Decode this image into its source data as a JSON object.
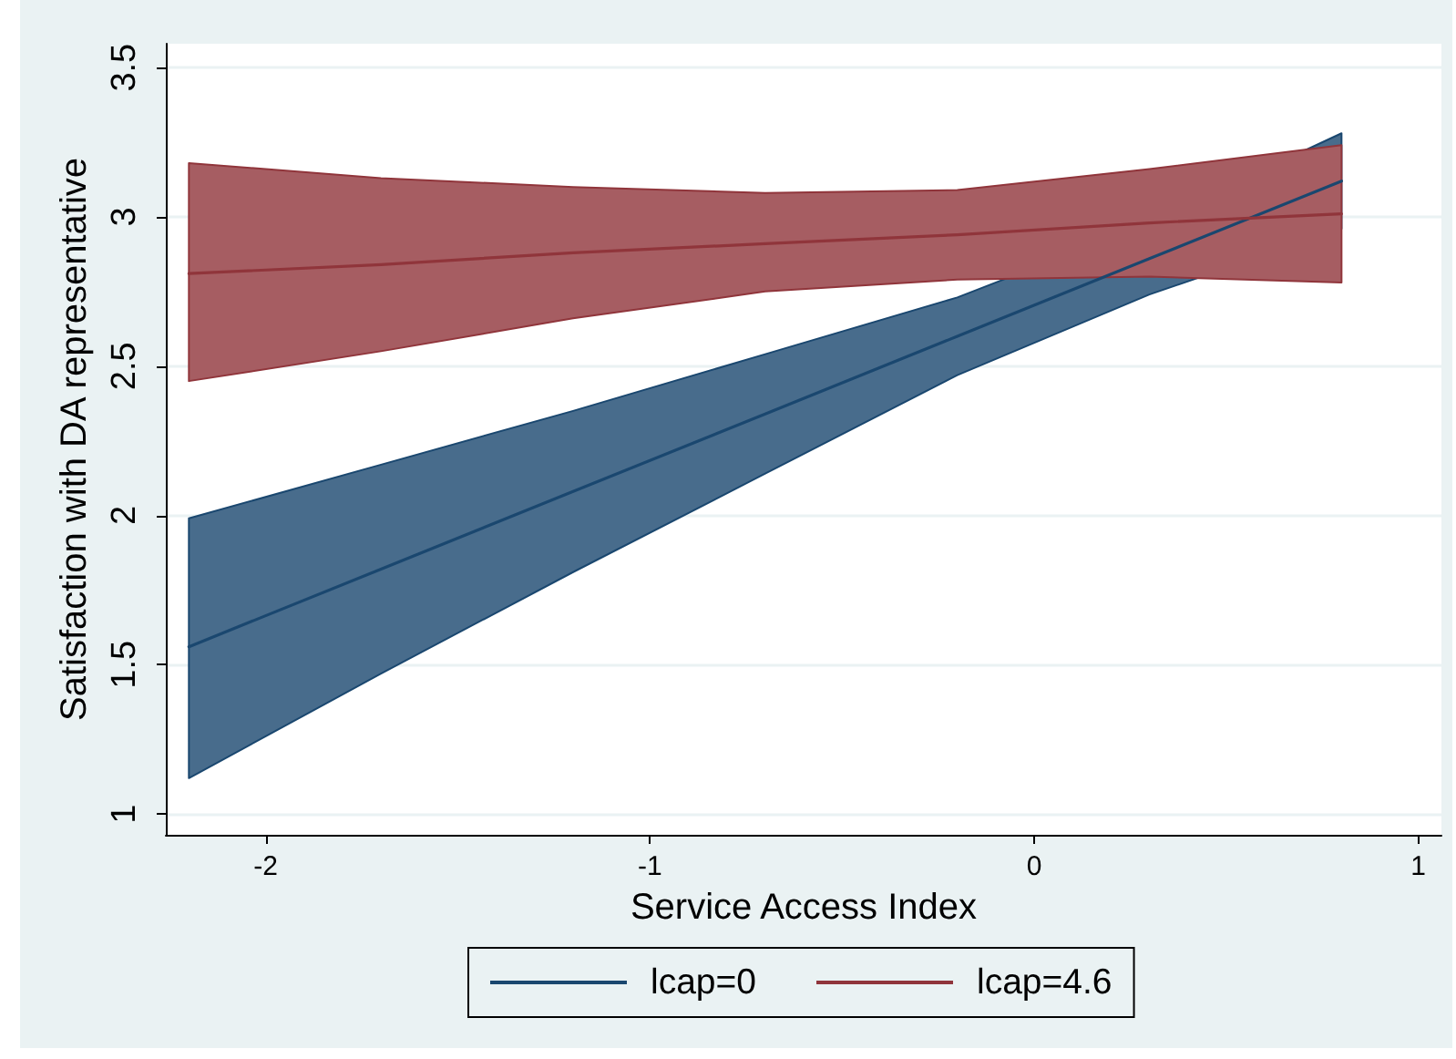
{
  "chart_data": {
    "type": "line",
    "xlabel": "Service Access Index",
    "ylabel": "Satisfaction with DA representative",
    "x": [
      -2.2,
      -1.7,
      -1.2,
      -0.7,
      -0.2,
      0.3,
      0.8
    ],
    "series": [
      {
        "name": "lcap=0",
        "color": "#1a476f",
        "values": [
          1.56,
          1.82,
          2.08,
          2.34,
          2.6,
          2.86,
          3.12
        ],
        "lower": [
          1.12,
          1.47,
          1.81,
          2.14,
          2.47,
          2.74,
          2.96
        ],
        "upper": [
          1.99,
          2.17,
          2.35,
          2.54,
          2.73,
          2.98,
          3.28
        ]
      },
      {
        "name": "lcap=4.6",
        "color": "#90353b",
        "values": [
          2.81,
          2.84,
          2.88,
          2.91,
          2.94,
          2.98,
          3.01
        ],
        "lower": [
          2.45,
          2.55,
          2.66,
          2.75,
          2.79,
          2.8,
          2.78
        ],
        "upper": [
          3.18,
          3.13,
          3.1,
          3.08,
          3.09,
          3.16,
          3.24
        ]
      }
    ],
    "xlim": [
      -2.26,
      1.06
    ],
    "ylim": [
      0.93,
      3.58
    ],
    "xticks": [
      -2,
      -1,
      0,
      1
    ],
    "yticks": [
      1,
      1.5,
      2,
      2.5,
      3,
      3.5
    ],
    "grid": "y",
    "legend": "bottom",
    "marker": "none",
    "line_style": "solid"
  }
}
